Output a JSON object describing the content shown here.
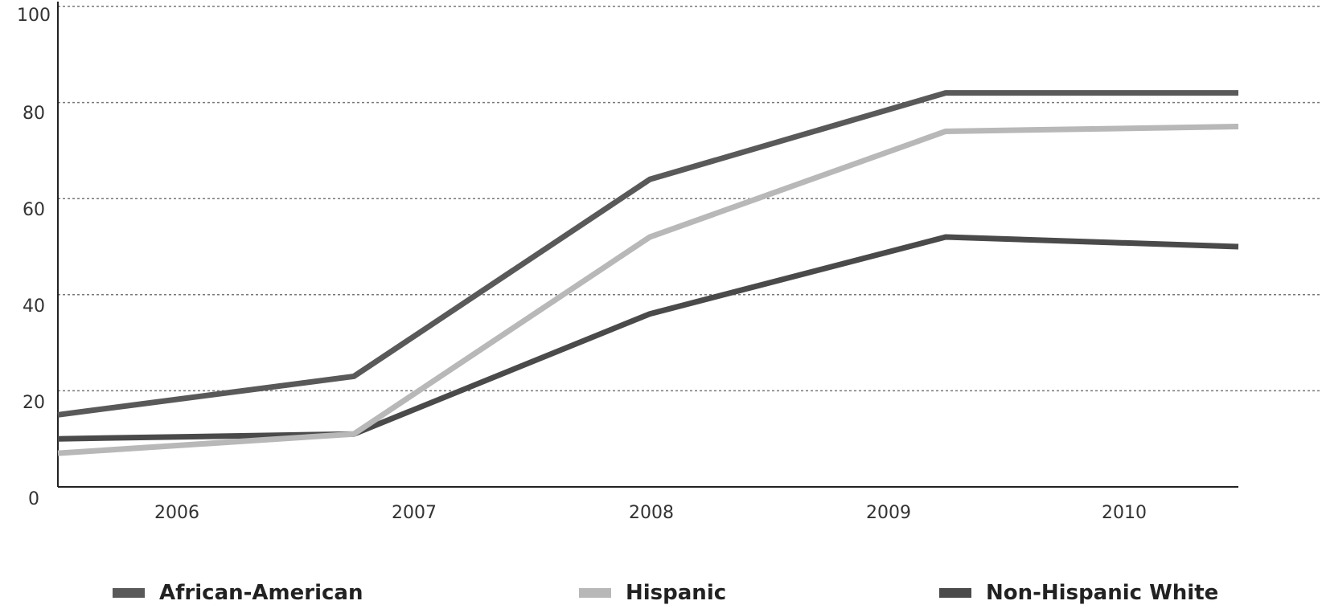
{
  "chart_data": {
    "type": "line",
    "title": "",
    "xlabel": "",
    "ylabel": "",
    "categories": [
      "2006",
      "2007",
      "2008",
      "2009",
      "2010"
    ],
    "ylim": [
      0,
      100
    ],
    "yticks": [
      "0",
      "20",
      "40",
      "60",
      "80",
      "100"
    ],
    "grid": true,
    "legend_position": "bottom",
    "x_points": [
      2006,
      2007,
      2008,
      2009,
      2010
    ],
    "series": [
      {
        "name": "African-American",
        "color": "#595959",
        "values": [
          15,
          23,
          64,
          82,
          82
        ]
      },
      {
        "name": "Hispanic",
        "color": "#b8b8b8",
        "values": [
          7,
          11,
          52,
          74,
          75
        ]
      },
      {
        "name": "Non-Hispanic White",
        "color": "#4a4a4a",
        "values": [
          10,
          11,
          36,
          52,
          50
        ]
      }
    ]
  }
}
